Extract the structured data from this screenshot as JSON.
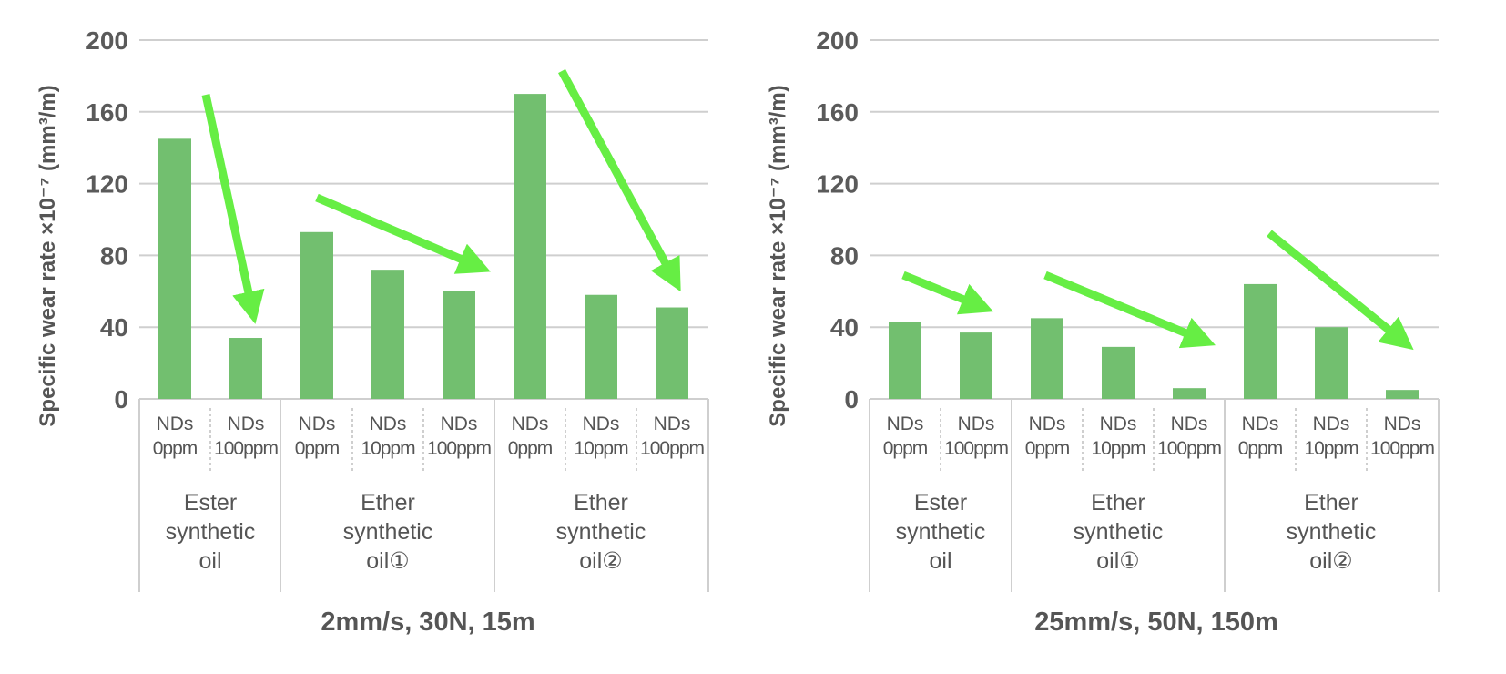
{
  "colors": {
    "bar": "#72bf6f",
    "arrow": "#66ee44",
    "grid": "#cfcfcf",
    "text": "#555555"
  },
  "chart_data": [
    {
      "type": "bar",
      "title": "2mm/s, 30N, 15m",
      "ylabel": "Specific wear rate ×10⁻⁷ (mm³/m)",
      "ylim": [
        0,
        200
      ],
      "yticks": [
        "200",
        "160",
        "120",
        "80",
        "40",
        "0"
      ],
      "groups": [
        {
          "name": [
            "Ester",
            "synthetic",
            "oil"
          ],
          "categories": [
            [
              "NDs",
              "0ppm"
            ],
            [
              "NDs",
              "100ppm"
            ]
          ],
          "values": [
            145,
            34
          ]
        },
        {
          "name": [
            "Ether",
            "synthetic",
            "oil①"
          ],
          "categories": [
            [
              "NDs",
              "0ppm"
            ],
            [
              "NDs",
              "10ppm"
            ],
            [
              "NDs",
              "100ppm"
            ]
          ],
          "values": [
            93,
            72,
            60
          ]
        },
        {
          "name": [
            "Ether",
            "synthetic",
            "oil②"
          ],
          "categories": [
            [
              "NDs",
              "0ppm"
            ],
            [
              "NDs",
              "10ppm"
            ],
            [
              "NDs",
              "100ppm"
            ]
          ],
          "values": [
            170,
            58,
            51
          ]
        }
      ]
    },
    {
      "type": "bar",
      "title": "25mm/s, 50N, 150m",
      "ylabel": "Specific wear rate ×10⁻⁷ (mm³/m)",
      "ylim": [
        0,
        200
      ],
      "yticks": [
        "200",
        "160",
        "120",
        "80",
        "40",
        "0"
      ],
      "groups": [
        {
          "name": [
            "Ester",
            "synthetic",
            "oil"
          ],
          "categories": [
            [
              "NDs",
              "0ppm"
            ],
            [
              "NDs",
              "100ppm"
            ]
          ],
          "values": [
            43,
            37
          ]
        },
        {
          "name": [
            "Ether",
            "synthetic",
            "oil①"
          ],
          "categories": [
            [
              "NDs",
              "0ppm"
            ],
            [
              "NDs",
              "10ppm"
            ],
            [
              "NDs",
              "100ppm"
            ]
          ],
          "values": [
            45,
            29,
            6
          ]
        },
        {
          "name": [
            "Ether",
            "synthetic",
            "oil②"
          ],
          "categories": [
            [
              "NDs",
              "0ppm"
            ],
            [
              "NDs",
              "10ppm"
            ],
            [
              "NDs",
              "100ppm"
            ]
          ],
          "values": [
            64,
            40,
            5
          ]
        }
      ]
    }
  ]
}
